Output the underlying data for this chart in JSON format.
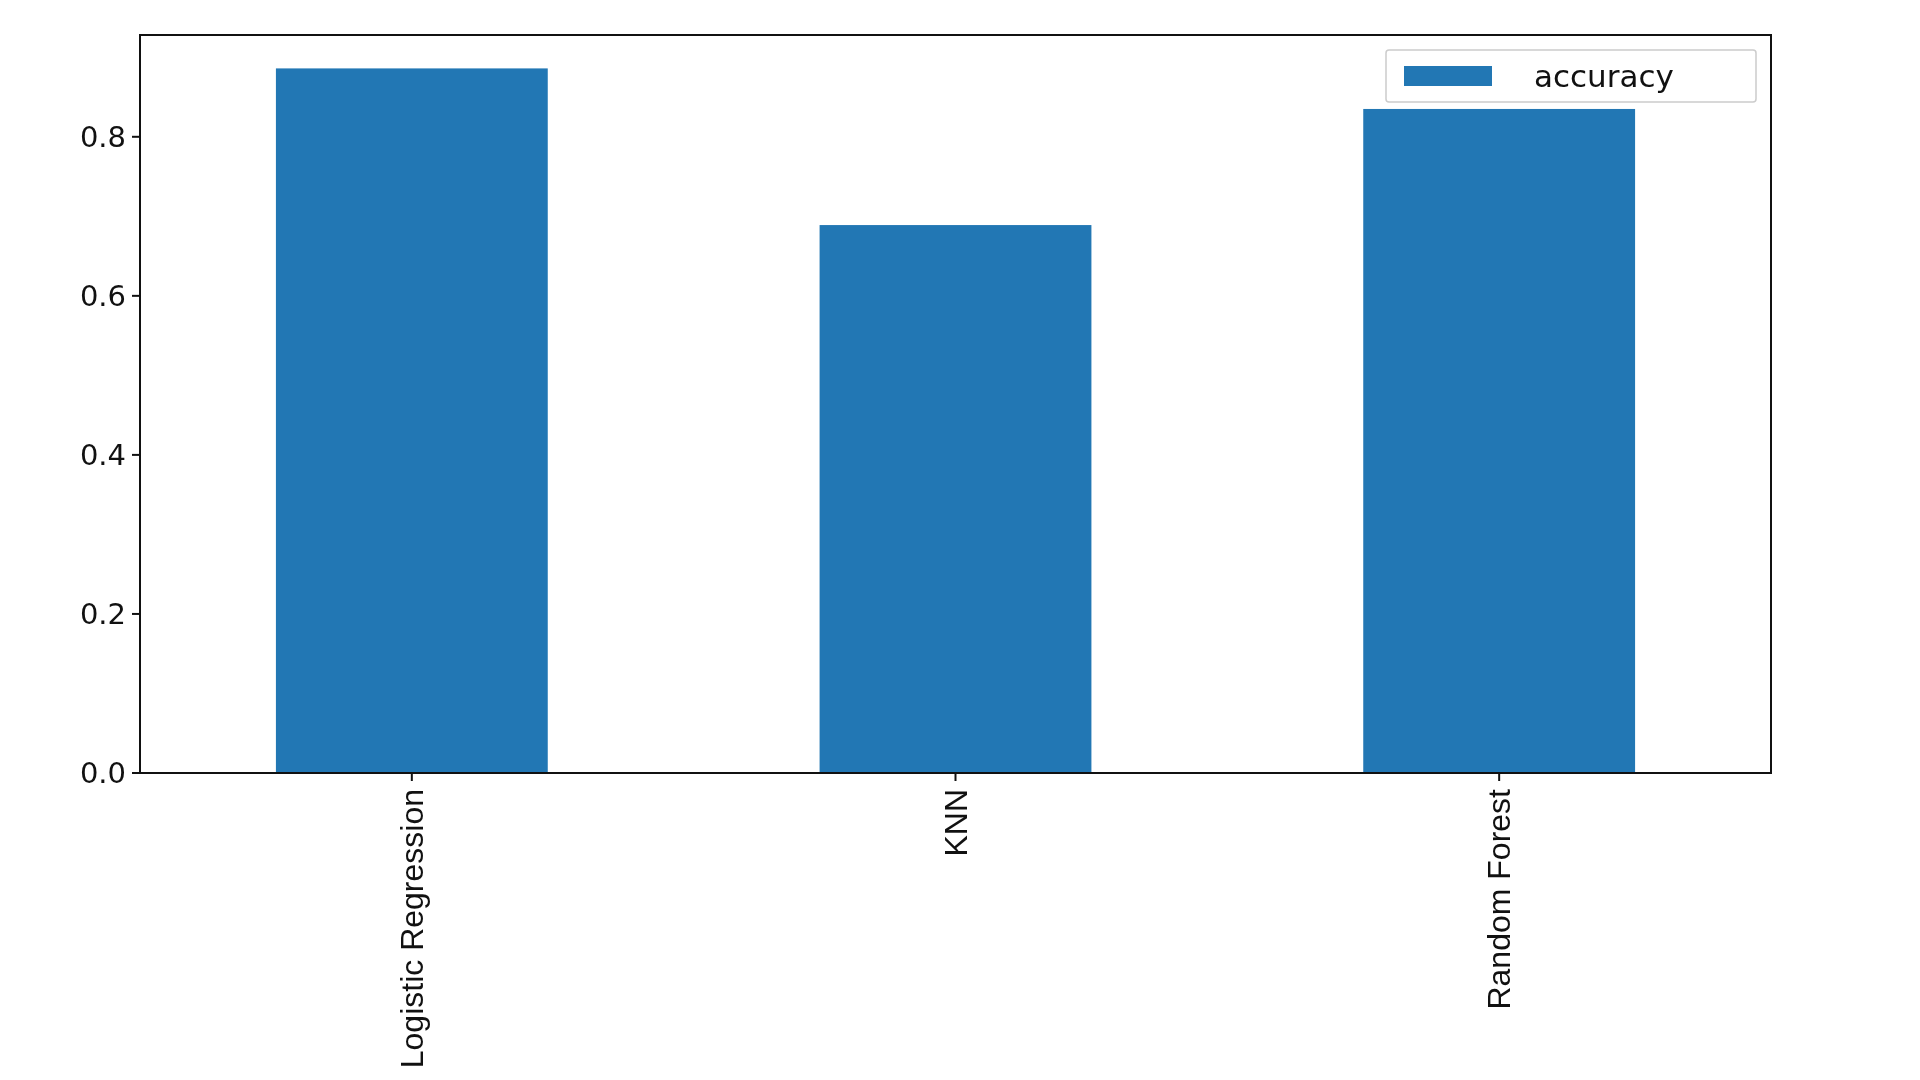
{
  "chart_data": {
    "type": "bar",
    "categories": [
      "Logistic Regression",
      "KNN",
      "Random Forest"
    ],
    "series": [
      {
        "name": "accuracy",
        "color": "#2277b4",
        "values": [
          0.886,
          0.689,
          0.835
        ]
      }
    ],
    "ylim": [
      0,
      0.928
    ],
    "yticks": [
      {
        "value": 0,
        "label": "0.0"
      },
      {
        "value": 0.2,
        "label": "0.2"
      },
      {
        "value": 0.4,
        "label": "0.4"
      },
      {
        "value": 0.6,
        "label": "0.6"
      },
      {
        "value": 0.8,
        "label": "0.8"
      }
    ],
    "legend": "top right",
    "grid": false
  }
}
